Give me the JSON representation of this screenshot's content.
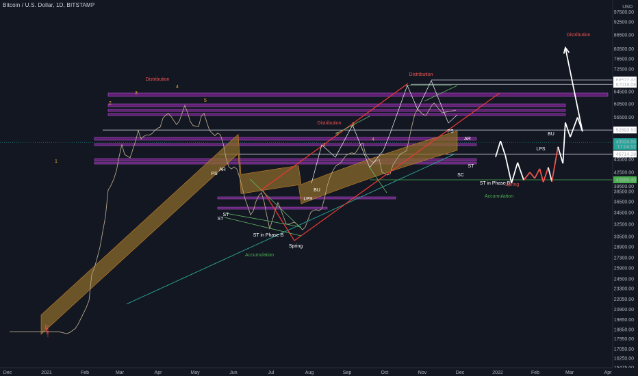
{
  "title": "Bitcoin / U.S. Dollar, 1D, BITSTAMP",
  "colors": {
    "background": "#131722",
    "up": "#26a69a",
    "down": "#ef5350",
    "purple_zone": "#9c27b0",
    "channel": "#e53935",
    "teal_ma": "#2a9d8f",
    "tan_ma": "#b5a78a",
    "cloud": "#8a6a2a",
    "green_line": "#4caf50",
    "wave": "#d1c49a"
  },
  "chart_data": {
    "type": "candlestick",
    "symbol": "Bitcoin / U.S. Dollar",
    "interval": "1D",
    "exchange": "BITSTAMP",
    "yscale": "log",
    "ylim": [
      15475,
      106000
    ],
    "y_ticks": [
      "97500.00",
      "92500.00",
      "86500.00",
      "80500.00",
      "76500.00",
      "72500.00",
      "68500.00",
      "64500.00",
      "60500.00",
      "56500.00",
      "52500.00",
      "48500.00",
      "45500.00",
      "42500.00",
      "39500.00",
      "38500.00",
      "36500.00",
      "34500.00",
      "32500.00",
      "30500.00",
      "28900.00",
      "27300.00",
      "25900.00",
      "24500.00",
      "23300.00",
      "22050.00",
      "20900.00",
      "19850.00",
      "18850.00",
      "17950.00",
      "17050.00",
      "16250.00",
      "15475.00"
    ],
    "usd_label": "USD",
    "price_labels": [
      {
        "text": "68522.44",
        "value": 68522.44
      },
      {
        "text": "67019.08",
        "value": 67019.08
      },
      {
        "text": "52893.53",
        "value": 52893.53
      },
      {
        "text": "46714.28",
        "value": 46714.28
      },
      {
        "text": "40885.40",
        "value": 40885.4
      }
    ],
    "current_price": {
      "text": "49634.86",
      "subtext": "17:04:52",
      "value": 49634.86
    },
    "x_ticks": [
      "Dec",
      "2021",
      "Feb",
      "Mar",
      "Apr",
      "May",
      "Jun",
      "Jul",
      "Aug",
      "Sep",
      "Oct",
      "Nov",
      "Dec",
      "2022",
      "Feb",
      "Mar",
      "Apr"
    ],
    "annotations": [
      {
        "text": "Distribution",
        "color": "#ef5350"
      },
      {
        "text": "Distribution",
        "color": "#ef5350"
      },
      {
        "text": "Distribution",
        "color": "#ef5350"
      },
      {
        "text": "Distribution",
        "color": "#ef5350"
      },
      {
        "text": "1",
        "color": "#e8a838"
      },
      {
        "text": "2",
        "color": "#e8a838"
      },
      {
        "text": "3",
        "color": "#e8a838"
      },
      {
        "text": "4",
        "color": "#e8a838"
      },
      {
        "text": "5",
        "color": "#e8a838"
      },
      {
        "text": "1",
        "color": "#e8a838"
      },
      {
        "text": "2",
        "color": "#e8a838"
      },
      {
        "text": "3",
        "color": "#e8a838"
      },
      {
        "text": "4",
        "color": "#e8a838"
      },
      {
        "text": "5",
        "color": "#e8a838"
      },
      {
        "text": "PS",
        "color": "#ffffff"
      },
      {
        "text": "AR",
        "color": "#ffffff"
      },
      {
        "text": "ST",
        "color": "#ffffff"
      },
      {
        "text": "ST",
        "color": "#ffffff"
      },
      {
        "text": "ST in Phase B",
        "color": "#ffffff"
      },
      {
        "text": "Spring",
        "color": "#ffffff"
      },
      {
        "text": "Accumulation",
        "color": "#4caf50"
      },
      {
        "text": "BU",
        "color": "#ffffff"
      },
      {
        "text": "LPS",
        "color": "#ffffff"
      },
      {
        "text": "PS",
        "color": "#ffffff"
      },
      {
        "text": "AR",
        "color": "#ffffff"
      },
      {
        "text": "ST",
        "color": "#ffffff"
      },
      {
        "text": "SC",
        "color": "#ffffff"
      },
      {
        "text": "ST in Phase B",
        "color": "#ffffff"
      },
      {
        "text": "Spring",
        "color": "#ef5350"
      },
      {
        "text": "Accumulation",
        "color": "#4caf50"
      },
      {
        "text": "LPS",
        "color": "#ffffff"
      },
      {
        "text": "BU",
        "color": "#ffffff"
      }
    ],
    "price_path": [
      [
        "Dec 1",
        19000
      ],
      [
        "Dec 8",
        18600
      ],
      [
        "Dec 15",
        19800
      ],
      [
        "Dec 21",
        23500
      ],
      [
        "Dec 27",
        27000
      ],
      [
        "Jan 1",
        29300
      ],
      [
        "Jan 4",
        31500
      ],
      [
        "Jan 8",
        40500
      ],
      [
        "Jan 11",
        34000
      ],
      [
        "Jan 14",
        39000
      ],
      [
        "Jan 21",
        31000
      ],
      [
        "Jan 28",
        33500
      ],
      [
        "Feb 3",
        37000
      ],
      [
        "Feb 8",
        46500
      ],
      [
        "Feb 14",
        48500
      ],
      [
        "Feb 21",
        57000
      ],
      [
        "Feb 23",
        48500
      ],
      [
        "Feb 28",
        45000
      ],
      [
        "Mar 5",
        48800
      ],
      [
        "Mar 13",
        61200
      ],
      [
        "Mar 21",
        57000
      ],
      [
        "Mar 25",
        52000
      ],
      [
        "Mar 31",
        58800
      ],
      [
        "Apr 6",
        57000
      ],
      [
        "Apr 14",
        64500
      ],
      [
        "Apr 18",
        55500
      ],
      [
        "Apr 25",
        49000
      ],
      [
        "Apr 30",
        57800
      ],
      [
        "May 4",
        54000
      ],
      [
        "May 10",
        56000
      ],
      [
        "May 13",
        49500
      ],
      [
        "May 19",
        37000
      ],
      [
        "May 23",
        34500
      ],
      [
        "May 27",
        39000
      ],
      [
        "Jun 3",
        38500
      ],
      [
        "Jun 8",
        33000
      ],
      [
        "Jun 15",
        40000
      ],
      [
        "Jun 22",
        31500
      ],
      [
        "Jun 28",
        34500
      ],
      [
        "Jul 6",
        34500
      ],
      [
        "Jul 14",
        32000
      ],
      [
        "Jul 20",
        29700
      ],
      [
        "Jul 26",
        38500
      ],
      [
        "Jul 31",
        41500
      ],
      [
        "Aug 6",
        42700
      ],
      [
        "Aug 14",
        47800
      ],
      [
        "Aug 20",
        49000
      ],
      [
        "Aug 23",
        50200
      ],
      [
        "Aug 31",
        47000
      ],
      [
        "Sep 6",
        52300
      ],
      [
        "Sep 7",
        46500
      ],
      [
        "Sep 13",
        44500
      ],
      [
        "Sep 21",
        40700
      ],
      [
        "Sep 28",
        41000
      ],
      [
        "Oct 1",
        48000
      ],
      [
        "Oct 6",
        55500
      ],
      [
        "Oct 14",
        57800
      ],
      [
        "Oct 20",
        65800
      ],
      [
        "Oct 27",
        58500
      ],
      [
        "Nov 1",
        61000
      ],
      [
        "Nov 10",
        69000
      ],
      [
        "Nov 18",
        56700
      ],
      [
        "Nov 26",
        53600
      ],
      [
        "Nov 30",
        57000
      ],
      [
        "Dec 3",
        57000
      ],
      [
        "Dec 4",
        46000
      ]
    ],
    "projection_path": [
      [
        "Dec 4",
        46000
      ],
      [
        "Dec 8",
        50000
      ],
      [
        "Dec 12",
        46300
      ],
      [
        "Dec 17",
        40200
      ],
      [
        "Dec 22",
        44700
      ],
      [
        "Dec 27",
        40800
      ],
      [
        "Jan 1",
        42500
      ],
      [
        "Jan 5",
        41200
      ],
      [
        "Jan 9",
        43300
      ],
      [
        "Jan 12",
        40400
      ],
      [
        "Jan 16",
        43600
      ],
      [
        "Jan 19",
        40500
      ],
      [
        "Jan 24",
        48500
      ],
      [
        "Jan 28",
        44500
      ],
      [
        "Feb 2",
        55000
      ],
      [
        "Feb 6",
        51000
      ],
      [
        "Feb 12",
        56500
      ],
      [
        "Feb 16",
        52500
      ],
      [
        "Mar 2",
        81000
      ]
    ]
  }
}
